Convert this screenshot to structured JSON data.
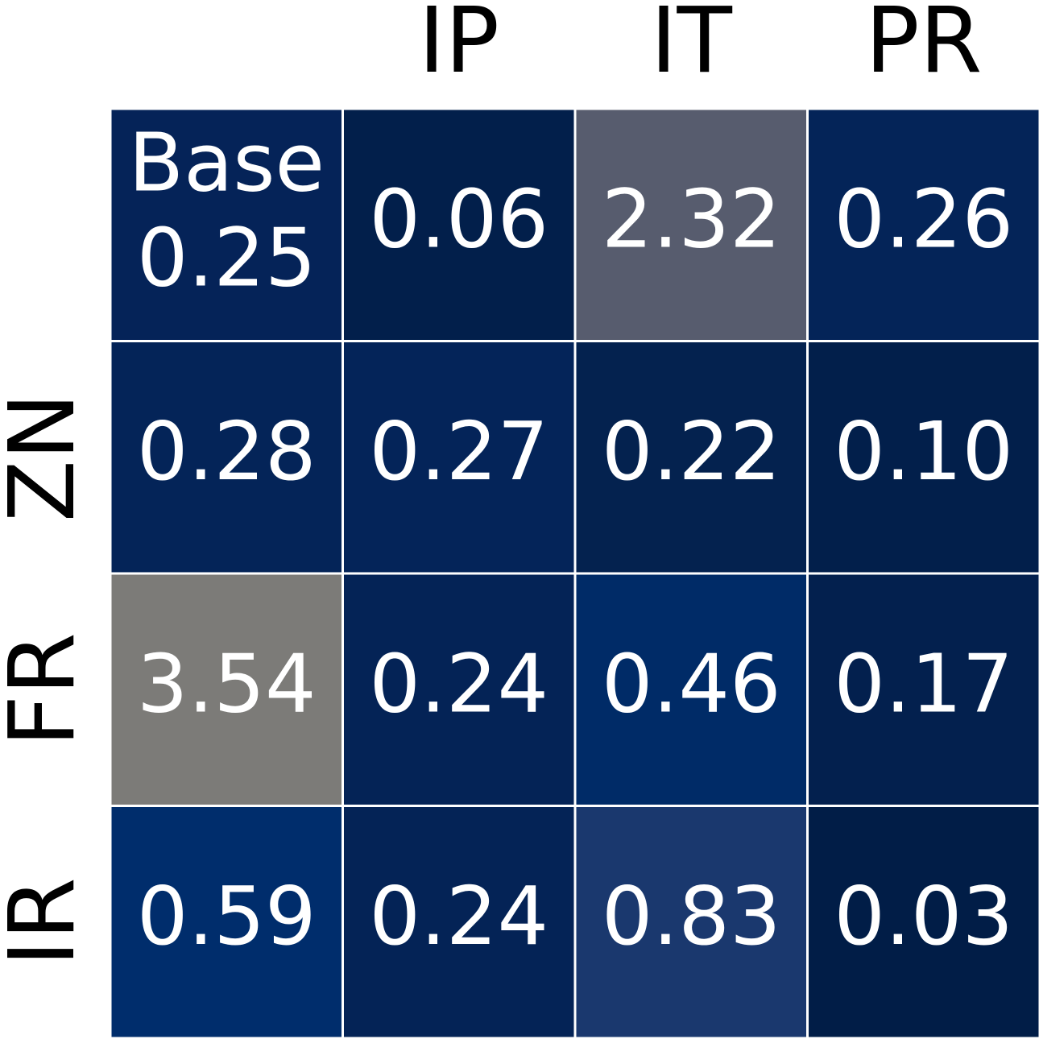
{
  "chart_data": {
    "type": "heatmap",
    "columns": [
      null,
      "IP",
      "IT",
      "PR"
    ],
    "rows": [
      null,
      "ZN",
      "FR",
      "IR"
    ],
    "annotation": "Base",
    "values": [
      [
        0.25,
        0.06,
        2.32,
        0.26
      ],
      [
        0.28,
        0.27,
        0.22,
        0.1
      ],
      [
        3.54,
        0.24,
        0.46,
        0.17
      ],
      [
        0.59,
        0.24,
        0.83,
        0.03
      ]
    ],
    "value_labels": [
      [
        "0.25",
        "0.06",
        "2.32",
        "0.26"
      ],
      [
        "0.28",
        "0.27",
        "0.22",
        "0.10"
      ],
      [
        "3.54",
        "0.24",
        "0.46",
        "0.17"
      ],
      [
        "0.59",
        "0.24",
        "0.83",
        "0.03"
      ]
    ],
    "colors": [
      [
        "#052358",
        "#021f4b",
        "#575c6e",
        "#042458"
      ],
      [
        "#042458",
        "#042459",
        "#04224f",
        "#021f4b"
      ],
      [
        "#7c7b78",
        "#042356",
        "#002b67",
        "#03204e"
      ],
      [
        "#002d6c",
        "#042356",
        "#1a386e",
        "#011d47"
      ]
    ]
  }
}
